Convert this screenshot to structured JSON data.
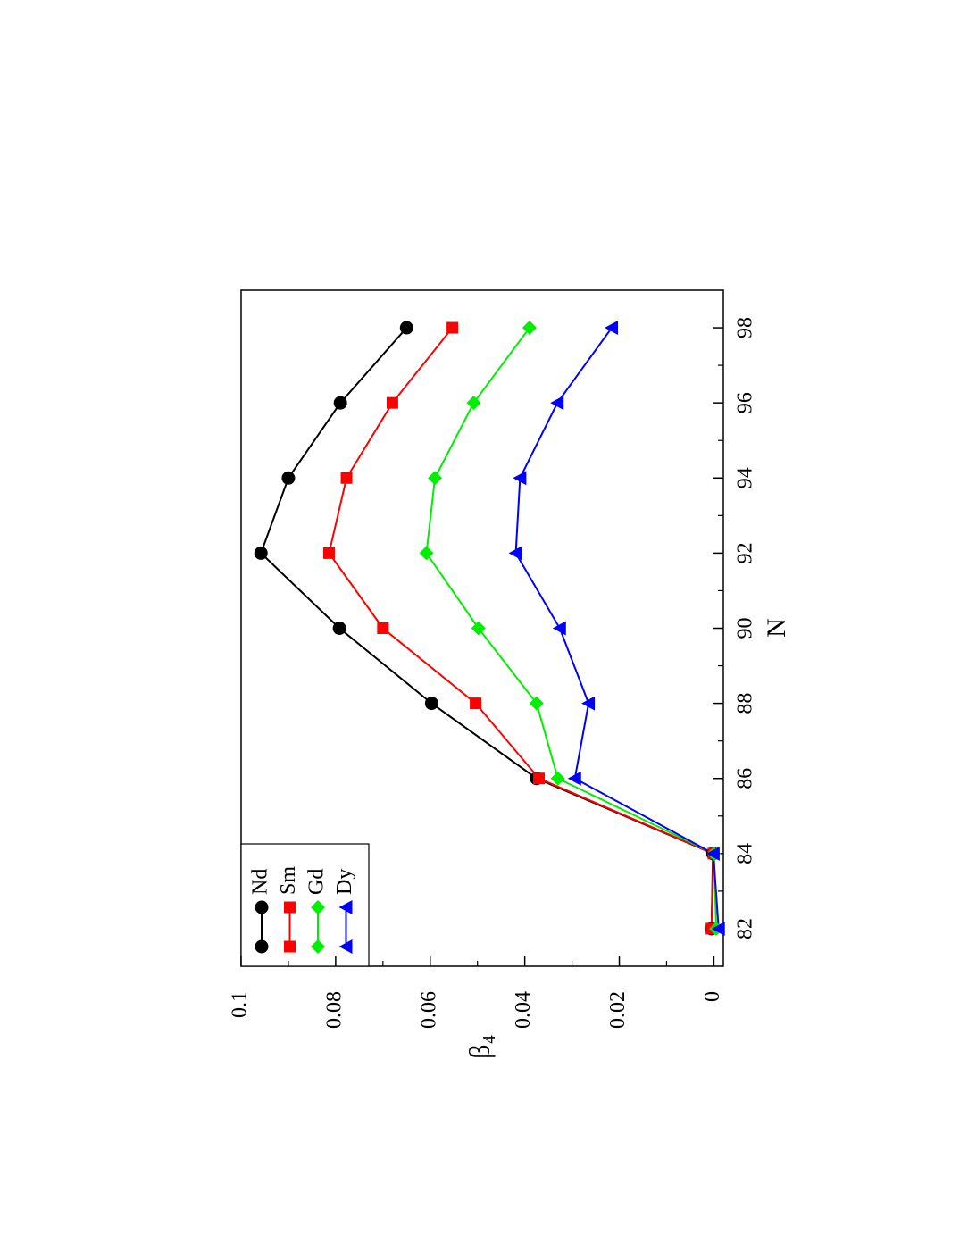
{
  "chart_data": {
    "type": "line",
    "xlabel": "N",
    "ylabel": "β₄",
    "xlim": [
      81,
      99
    ],
    "xticks": [
      82,
      84,
      86,
      88,
      90,
      92,
      94,
      96,
      98
    ],
    "ylim": [
      -0.002,
      0.1
    ],
    "yticks": [
      0,
      0.02,
      0.04,
      0.06,
      0.08,
      0.1
    ],
    "x": [
      82,
      84,
      86,
      88,
      90,
      92,
      94,
      96,
      98
    ],
    "legend": "upper left",
    "series": [
      {
        "name": "Nd",
        "color": "#000000",
        "marker": "circle",
        "values": [
          0.0005,
          0.0002,
          0.0375,
          0.0597,
          0.0792,
          0.0958,
          0.09,
          0.079,
          0.065
        ]
      },
      {
        "name": "Sm",
        "color": "#ff0000",
        "marker": "square",
        "values": [
          0.0005,
          0.0001,
          0.037,
          0.0504,
          0.07,
          0.0814,
          0.0777,
          0.068,
          0.0553
        ]
      },
      {
        "name": "Gd",
        "color": "#00ee00",
        "marker": "diamond",
        "values": [
          -0.0005,
          0.0,
          0.033,
          0.0375,
          0.0498,
          0.0608,
          0.059,
          0.0508,
          0.039
        ]
      },
      {
        "name": "Dy",
        "color": "#0000ff",
        "marker": "triangle",
        "values": [
          -0.001,
          0.0001,
          0.0294,
          0.0265,
          0.0326,
          0.0419,
          0.041,
          0.0331,
          0.0216
        ]
      }
    ]
  }
}
